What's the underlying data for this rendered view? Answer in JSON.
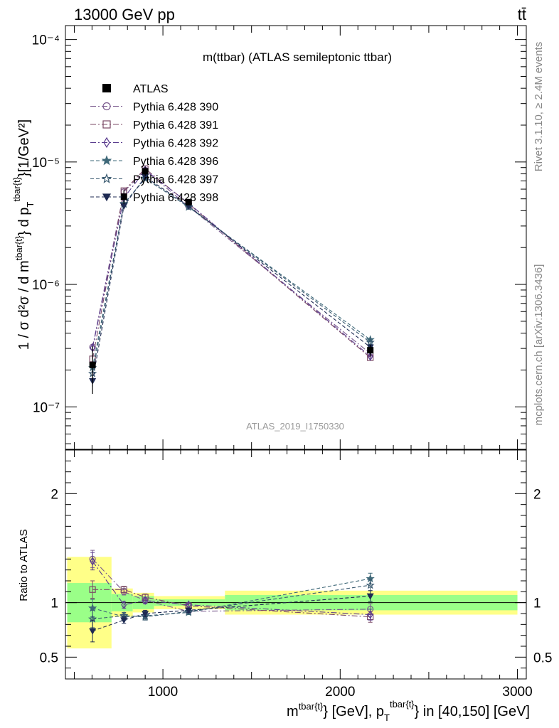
{
  "header": {
    "left": "13000 GeV pp",
    "right": "tt̄"
  },
  "side_labels": {
    "rivet": "Rivet 3.1.10, ≥ 2.4M events",
    "mcplots": "mcplots.cern.ch [arXiv:1306.3436]"
  },
  "chart_data": {
    "type": "line",
    "title": "m(ttbar) (ATLAS semileptonic ttbar)",
    "watermark": "ATLAS_2019_I1750330",
    "ylabel": {
      "main": "1 / σ d²σ / d m",
      "sup_tbar1": "tbar{t}",
      "mid": "} d p",
      "sub_T": "T",
      "sup_tbar2": "tbar{t}",
      "end": "}[1/GeV²]"
    },
    "xlabel": {
      "m": "m",
      "sup1": "tbar{t}",
      "mid": "} [GeV], p",
      "sub_T": "T",
      "sup2": "tbar{t}",
      "end": "} in [40,150] [GeV]"
    },
    "xlim": [
      450,
      3050
    ],
    "ylim_main": [
      4.5e-08,
      0.00013
    ],
    "yscale_main": "log",
    "ylim_ratio": [
      0.3,
      2.4
    ],
    "ratio_ylabel": "Ratio to ATLAS",
    "x_ticks": [
      1000,
      2000,
      3000
    ],
    "x_tick_labels": [
      "1000",
      "2000",
      "3000"
    ],
    "main_y_tick_labels": [
      "10⁻⁷",
      "10⁻⁶",
      "10⁻⁵",
      "10⁻⁴"
    ],
    "ratio_y_ticks": [
      0.5,
      1,
      2
    ],
    "ratio_y_tick_labels": [
      "0.5",
      "1",
      "2"
    ],
    "x": [
      603,
      780,
      900,
      1145,
      2170
    ],
    "bins": [
      [
        460,
        710
      ],
      [
        710,
        830
      ],
      [
        830,
        950
      ],
      [
        950,
        1350
      ],
      [
        1350,
        3000
      ]
    ],
    "data": {
      "name": "ATLAS",
      "values": [
        2.2e-07,
        5.2e-06,
        8.4e-06,
        4.7e-06,
        2.9e-07
      ],
      "band_stat_rel": [
        0.18,
        0.08,
        0.06,
        0.03,
        0.07
      ],
      "band_tot_rel": [
        0.42,
        0.13,
        0.09,
        0.06,
        0.11
      ]
    },
    "series": [
      {
        "name": "Pythia 6.428 390",
        "color": "#7a5a8e",
        "marker": "circle-open",
        "dash": "8,3,2,3",
        "ratio": [
          1.4,
          1.1,
          1.02,
          0.92,
          0.94
        ],
        "ratio_err": [
          0.08,
          0.03,
          0.03,
          0.02,
          0.05
        ]
      },
      {
        "name": "Pythia 6.428 391",
        "color": "#7b4a66",
        "marker": "square-open",
        "dash": "8,3,2,3",
        "ratio": [
          1.12,
          1.12,
          1.05,
          0.97,
          0.87
        ],
        "ratio_err": [
          0.08,
          0.03,
          0.03,
          0.02,
          0.05
        ]
      },
      {
        "name": "Pythia 6.428 392",
        "color": "#5a3c8e",
        "marker": "diamond-open",
        "dash": "8,3,2,3",
        "ratio": [
          1.38,
          0.98,
          1.02,
          0.98,
          0.89
        ],
        "ratio_err": [
          0.08,
          0.03,
          0.03,
          0.02,
          0.05
        ]
      },
      {
        "name": "Pythia 6.428 396",
        "color": "#3e6878",
        "marker": "star-filled",
        "dash": "5,3",
        "ratio": [
          0.95,
          0.87,
          0.88,
          0.91,
          1.22
        ],
        "ratio_err": [
          0.08,
          0.03,
          0.03,
          0.02,
          0.05
        ]
      },
      {
        "name": "Pythia 6.428 397",
        "color": "#3a5a70",
        "marker": "star-open",
        "dash": "5,3",
        "ratio": [
          0.85,
          0.88,
          0.87,
          0.92,
          1.16
        ],
        "ratio_err": [
          0.08,
          0.03,
          0.03,
          0.02,
          0.05
        ]
      },
      {
        "name": "Pythia 6.428 398",
        "color": "#1e2a52",
        "marker": "triangle-down-filled",
        "dash": "5,3",
        "ratio": [
          0.74,
          0.84,
          0.9,
          0.93,
          1.06
        ],
        "ratio_err": [
          0.1,
          0.03,
          0.03,
          0.02,
          0.05
        ]
      }
    ],
    "legend_placement": "top-left"
  }
}
